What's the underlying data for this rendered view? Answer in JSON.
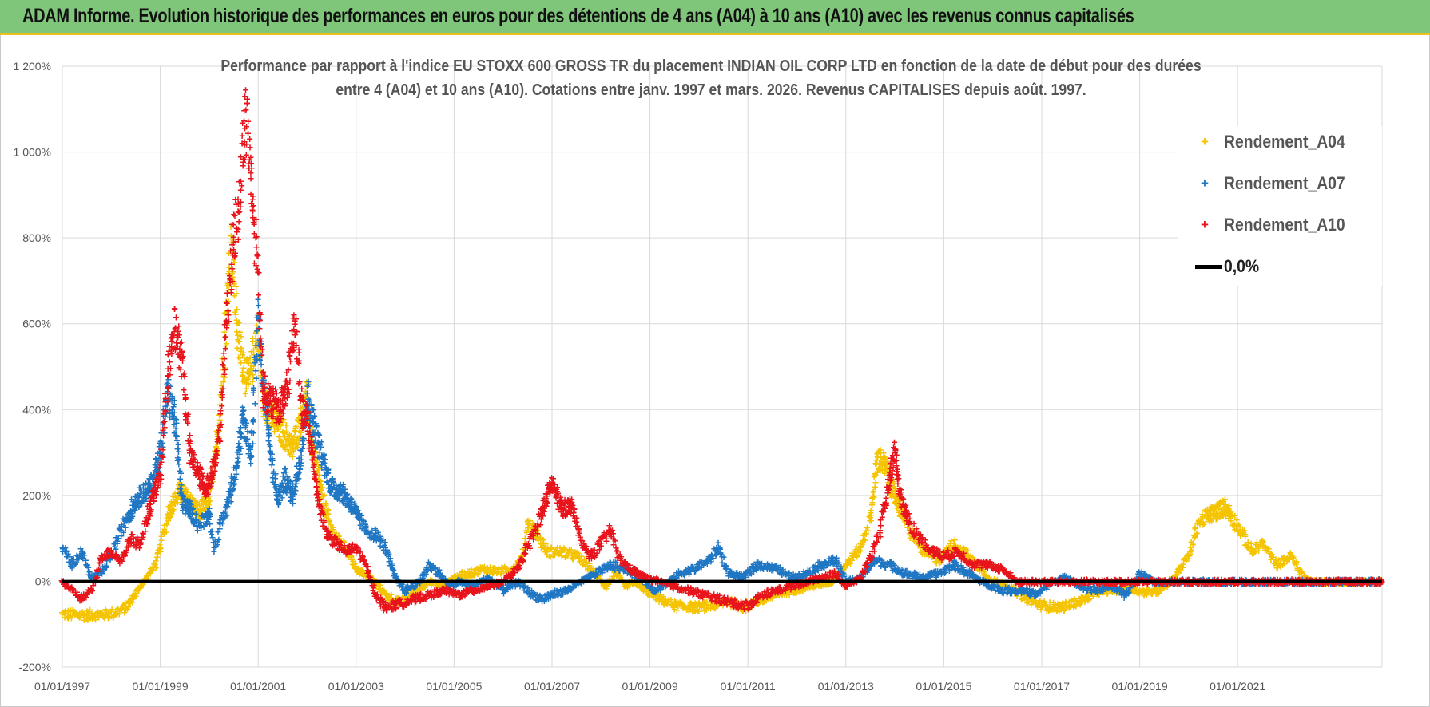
{
  "header": {
    "title": "ADAM Informe. Evolution historique des performances en euros pour des détentions de 4 ans (A04) à 10 ans (A10) avec les revenus connus capitalisés"
  },
  "colors": {
    "header_bg": "#7fc57a",
    "header_border": "#e7c11e",
    "a04": "#f5c400",
    "a07": "#1f77c4",
    "a10": "#e8141c",
    "zero_line": "#000000",
    "grid": "#d9d9d9"
  },
  "chart_data": {
    "type": "scatter",
    "title_line1": "Performance par rapport à l'indice EU STOXX 600 GROSS TR  du placement INDIAN OIL CORP LTD en fonction de la date de début pour des durées",
    "title_line2": "entre 4 (A04) et 10 ans (A10).  Cotations entre janv. 1997 et mars. 2026. Revenus CAPITALISES depuis août. 1997.",
    "xlabel": "",
    "ylabel": "",
    "x_range": [
      1997.0,
      2023.95
    ],
    "ylim": [
      -200,
      1200
    ],
    "y_ticks": [
      -200,
      0,
      200,
      400,
      600,
      800,
      1000,
      1200
    ],
    "y_tick_labels": [
      "-200%",
      "0%",
      "200%",
      "400%",
      "600%",
      "800%",
      "1 000%",
      "1 200%"
    ],
    "x_ticks": [
      1997,
      1999,
      2001,
      2003,
      2005,
      2007,
      2009,
      2011,
      2013,
      2015,
      2017,
      2019,
      2021
    ],
    "x_tick_labels": [
      "01/01/1997",
      "01/01/1999",
      "01/01/2001",
      "01/01/2003",
      "01/01/2005",
      "01/01/2007",
      "01/01/2009",
      "01/01/2011",
      "01/01/2013",
      "01/01/2015",
      "01/01/2017",
      "01/01/2019",
      "01/01/2021"
    ],
    "grid": true,
    "legend_position": "top-right",
    "series": [
      {
        "name": "Rendement_A04",
        "marker": "+",
        "points": [
          [
            1997.0,
            -75
          ],
          [
            1997.5,
            -78
          ],
          [
            1998.0,
            -75
          ],
          [
            1998.3,
            -60
          ],
          [
            1998.6,
            -10
          ],
          [
            1998.9,
            40
          ],
          [
            1999.0,
            80
          ],
          [
            1999.2,
            170
          ],
          [
            1999.4,
            210
          ],
          [
            1999.6,
            190
          ],
          [
            1999.8,
            160
          ],
          [
            2000.0,
            200
          ],
          [
            2000.15,
            300
          ],
          [
            2000.3,
            520
          ],
          [
            2000.45,
            790
          ],
          [
            2000.6,
            560
          ],
          [
            2000.8,
            460
          ],
          [
            2001.0,
            590
          ],
          [
            2001.1,
            420
          ],
          [
            2001.3,
            380
          ],
          [
            2001.5,
            350
          ],
          [
            2001.7,
            310
          ],
          [
            2001.9,
            390
          ],
          [
            2002.0,
            430
          ],
          [
            2002.1,
            330
          ],
          [
            2002.3,
            200
          ],
          [
            2002.5,
            120
          ],
          [
            2002.7,
            90
          ],
          [
            2002.9,
            60
          ],
          [
            2003.0,
            30
          ],
          [
            2003.3,
            10
          ],
          [
            2003.6,
            -30
          ],
          [
            2003.9,
            -50
          ],
          [
            2004.2,
            -20
          ],
          [
            2004.5,
            0
          ],
          [
            2004.8,
            -10
          ],
          [
            2005.0,
            10
          ],
          [
            2005.3,
            20
          ],
          [
            2005.6,
            30
          ],
          [
            2005.9,
            25
          ],
          [
            2006.2,
            30
          ],
          [
            2006.4,
            60
          ],
          [
            2006.5,
            140
          ],
          [
            2006.7,
            110
          ],
          [
            2006.9,
            70
          ],
          [
            2007.2,
            70
          ],
          [
            2007.5,
            60
          ],
          [
            2007.8,
            30
          ],
          [
            2008.1,
            -10
          ],
          [
            2008.3,
            20
          ],
          [
            2008.5,
            -10
          ],
          [
            2008.7,
            0
          ],
          [
            2008.9,
            -20
          ],
          [
            2009.2,
            -40
          ],
          [
            2009.5,
            -55
          ],
          [
            2009.9,
            -60
          ],
          [
            2010.3,
            -55
          ],
          [
            2010.6,
            -45
          ],
          [
            2010.9,
            -60
          ],
          [
            2011.2,
            -45
          ],
          [
            2011.6,
            -30
          ],
          [
            2011.9,
            -20
          ],
          [
            2012.3,
            -10
          ],
          [
            2012.7,
            0
          ],
          [
            2013.0,
            40
          ],
          [
            2013.3,
            80
          ],
          [
            2013.5,
            150
          ],
          [
            2013.65,
            290
          ],
          [
            2013.8,
            270
          ],
          [
            2014.0,
            200
          ],
          [
            2014.3,
            120
          ],
          [
            2014.6,
            70
          ],
          [
            2014.9,
            50
          ],
          [
            2015.2,
            90
          ],
          [
            2015.5,
            60
          ],
          [
            2015.9,
            10
          ],
          [
            2016.3,
            -10
          ],
          [
            2016.7,
            -40
          ],
          [
            2017.0,
            -55
          ],
          [
            2017.4,
            -60
          ],
          [
            2017.8,
            -45
          ],
          [
            2018.2,
            -20
          ],
          [
            2018.5,
            -20
          ],
          [
            2018.8,
            -15
          ],
          [
            2019.1,
            -25
          ],
          [
            2019.4,
            -20
          ],
          [
            2019.7,
            10
          ],
          [
            2020.0,
            60
          ],
          [
            2020.2,
            140
          ],
          [
            2020.5,
            160
          ],
          [
            2020.75,
            175
          ],
          [
            2021.0,
            130
          ],
          [
            2021.3,
            70
          ],
          [
            2021.5,
            90
          ],
          [
            2021.8,
            40
          ],
          [
            2022.1,
            60
          ],
          [
            2022.3,
            20
          ],
          [
            2022.5,
            0
          ],
          [
            2023.95,
            0
          ]
        ]
      },
      {
        "name": "Rendement_A07",
        "marker": "+",
        "points": [
          [
            1997.0,
            80
          ],
          [
            1997.2,
            40
          ],
          [
            1997.4,
            70
          ],
          [
            1997.6,
            10
          ],
          [
            1997.8,
            20
          ],
          [
            1998.0,
            60
          ],
          [
            1998.2,
            120
          ],
          [
            1998.5,
            190
          ],
          [
            1998.8,
            220
          ],
          [
            1999.0,
            300
          ],
          [
            1999.15,
            440
          ],
          [
            1999.3,
            380
          ],
          [
            1999.45,
            180
          ],
          [
            1999.6,
            170
          ],
          [
            1999.8,
            130
          ],
          [
            2000.0,
            160
          ],
          [
            2000.1,
            80
          ],
          [
            2000.3,
            150
          ],
          [
            2000.5,
            240
          ],
          [
            2000.7,
            380
          ],
          [
            2000.85,
            290
          ],
          [
            2001.0,
            620
          ],
          [
            2001.1,
            470
          ],
          [
            2001.25,
            300
          ],
          [
            2001.4,
            190
          ],
          [
            2001.55,
            240
          ],
          [
            2001.7,
            200
          ],
          [
            2001.9,
            310
          ],
          [
            2002.0,
            440
          ],
          [
            2002.1,
            380
          ],
          [
            2002.3,
            290
          ],
          [
            2002.5,
            220
          ],
          [
            2002.7,
            210
          ],
          [
            2002.9,
            180
          ],
          [
            2003.0,
            160
          ],
          [
            2003.2,
            120
          ],
          [
            2003.4,
            110
          ],
          [
            2003.6,
            80
          ],
          [
            2003.8,
            10
          ],
          [
            2004.0,
            -20
          ],
          [
            2004.3,
            0
          ],
          [
            2004.5,
            40
          ],
          [
            2004.7,
            20
          ],
          [
            2004.9,
            -10
          ],
          [
            2005.1,
            0
          ],
          [
            2005.4,
            -10
          ],
          [
            2005.7,
            10
          ],
          [
            2006.0,
            -20
          ],
          [
            2006.3,
            0
          ],
          [
            2006.6,
            -30
          ],
          [
            2006.8,
            -40
          ],
          [
            2007.0,
            -30
          ],
          [
            2007.3,
            -20
          ],
          [
            2007.6,
            0
          ],
          [
            2007.9,
            20
          ],
          [
            2008.2,
            40
          ],
          [
            2008.5,
            30
          ],
          [
            2008.8,
            10
          ],
          [
            2009.1,
            -20
          ],
          [
            2009.4,
            0
          ],
          [
            2009.6,
            20
          ],
          [
            2009.9,
            30
          ],
          [
            2010.2,
            50
          ],
          [
            2010.4,
            80
          ],
          [
            2010.6,
            20
          ],
          [
            2010.9,
            10
          ],
          [
            2011.2,
            40
          ],
          [
            2011.6,
            30
          ],
          [
            2011.9,
            10
          ],
          [
            2012.2,
            20
          ],
          [
            2012.5,
            40
          ],
          [
            2012.8,
            50
          ],
          [
            2013.0,
            0
          ],
          [
            2013.3,
            10
          ],
          [
            2013.6,
            50
          ],
          [
            2013.9,
            40
          ],
          [
            2014.2,
            20
          ],
          [
            2014.6,
            10
          ],
          [
            2014.9,
            20
          ],
          [
            2015.2,
            40
          ],
          [
            2015.5,
            20
          ],
          [
            2015.8,
            0
          ],
          [
            2016.2,
            -20
          ],
          [
            2016.6,
            -20
          ],
          [
            2016.9,
            -30
          ],
          [
            2017.2,
            0
          ],
          [
            2017.5,
            10
          ],
          [
            2017.8,
            -10
          ],
          [
            2018.1,
            -20
          ],
          [
            2018.4,
            -10
          ],
          [
            2018.7,
            -30
          ],
          [
            2019.0,
            20
          ],
          [
            2019.3,
            0
          ],
          [
            2019.5,
            0
          ],
          [
            2023.95,
            0
          ]
        ]
      },
      {
        "name": "Rendement_A10",
        "marker": "+",
        "points": [
          [
            1997.0,
            0
          ],
          [
            1997.2,
            -20
          ],
          [
            1997.4,
            -40
          ],
          [
            1997.6,
            -20
          ],
          [
            1997.8,
            60
          ],
          [
            1998.0,
            70
          ],
          [
            1998.2,
            50
          ],
          [
            1998.4,
            100
          ],
          [
            1998.6,
            90
          ],
          [
            1998.8,
            180
          ],
          [
            1999.0,
            250
          ],
          [
            1999.15,
            480
          ],
          [
            1999.3,
            590
          ],
          [
            1999.45,
            520
          ],
          [
            1999.6,
            300
          ],
          [
            1999.75,
            260
          ],
          [
            1999.9,
            220
          ],
          [
            2000.0,
            230
          ],
          [
            2000.2,
            330
          ],
          [
            2000.35,
            610
          ],
          [
            2000.5,
            790
          ],
          [
            2000.6,
            880
          ],
          [
            2000.75,
            1100
          ],
          [
            2000.85,
            940
          ],
          [
            2001.0,
            720
          ],
          [
            2001.1,
            450
          ],
          [
            2001.25,
            420
          ],
          [
            2001.45,
            400
          ],
          [
            2001.6,
            460
          ],
          [
            2001.75,
            600
          ],
          [
            2001.9,
            390
          ],
          [
            2002.0,
            380
          ],
          [
            2002.1,
            300
          ],
          [
            2002.25,
            180
          ],
          [
            2002.4,
            110
          ],
          [
            2002.6,
            90
          ],
          [
            2002.8,
            70
          ],
          [
            2003.0,
            80
          ],
          [
            2003.2,
            40
          ],
          [
            2003.4,
            -30
          ],
          [
            2003.6,
            -60
          ],
          [
            2003.9,
            -50
          ],
          [
            2004.2,
            -40
          ],
          [
            2004.5,
            -30
          ],
          [
            2004.8,
            -20
          ],
          [
            2005.1,
            -30
          ],
          [
            2005.4,
            -20
          ],
          [
            2005.7,
            -10
          ],
          [
            2006.0,
            0
          ],
          [
            2006.3,
            30
          ],
          [
            2006.5,
            80
          ],
          [
            2006.7,
            130
          ],
          [
            2006.9,
            200
          ],
          [
            2007.0,
            230
          ],
          [
            2007.2,
            170
          ],
          [
            2007.4,
            180
          ],
          [
            2007.6,
            90
          ],
          [
            2007.8,
            60
          ],
          [
            2008.0,
            90
          ],
          [
            2008.2,
            120
          ],
          [
            2008.4,
            50
          ],
          [
            2008.6,
            30
          ],
          [
            2008.9,
            10
          ],
          [
            2009.2,
            0
          ],
          [
            2009.5,
            -10
          ],
          [
            2009.8,
            -20
          ],
          [
            2010.1,
            -30
          ],
          [
            2010.4,
            -40
          ],
          [
            2010.7,
            -50
          ],
          [
            2011.0,
            -55
          ],
          [
            2011.3,
            -30
          ],
          [
            2011.6,
            -20
          ],
          [
            2011.9,
            -10
          ],
          [
            2012.2,
            0
          ],
          [
            2012.5,
            10
          ],
          [
            2012.8,
            20
          ],
          [
            2013.0,
            -10
          ],
          [
            2013.3,
            10
          ],
          [
            2013.5,
            60
          ],
          [
            2013.7,
            120
          ],
          [
            2013.9,
            250
          ],
          [
            2014.0,
            310
          ],
          [
            2014.1,
            200
          ],
          [
            2014.3,
            140
          ],
          [
            2014.5,
            100
          ],
          [
            2014.8,
            70
          ],
          [
            2015.0,
            60
          ],
          [
            2015.3,
            70
          ],
          [
            2015.6,
            40
          ],
          [
            2015.9,
            40
          ],
          [
            2016.2,
            30
          ],
          [
            2016.5,
            0
          ],
          [
            2023.95,
            0
          ]
        ]
      },
      {
        "name": "0,0%",
        "marker": "line",
        "value": 0
      }
    ]
  }
}
